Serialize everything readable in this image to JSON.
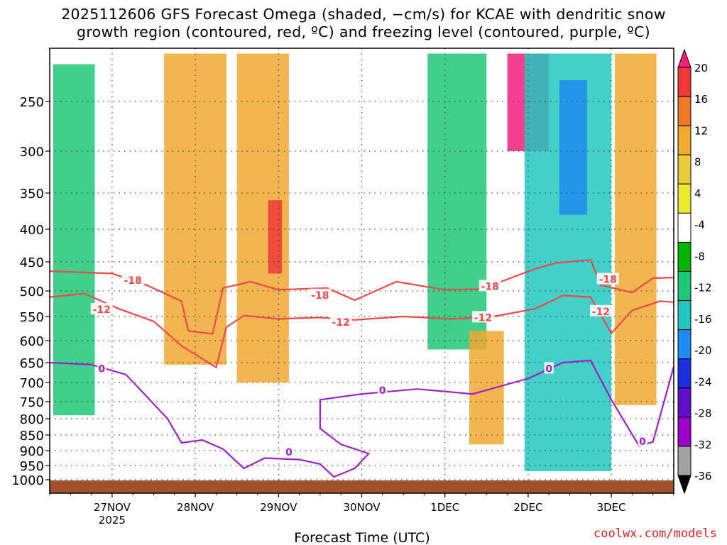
{
  "chart_data": {
    "type": "heatmap",
    "title_line1": "2025112606 GFS Forecast Omega (shaded, −cm/s) for KCAE with dendritic snow",
    "title_line2": "growth region (contoured, red, ºC) and freezing level (contoured, purple, ºC)",
    "xlabel": "Forecast Time (UTC)",
    "ylabel": "",
    "x_ticks": [
      {
        "label": "27NOV",
        "sub": "2025",
        "t": 18
      },
      {
        "label": "28NOV",
        "sub": "",
        "t": 42
      },
      {
        "label": "29NOV",
        "sub": "",
        "t": 66
      },
      {
        "label": "30NOV",
        "sub": "",
        "t": 90
      },
      {
        "label": "1DEC",
        "sub": "",
        "t": 114
      },
      {
        "label": "2DEC",
        "sub": "",
        "t": 138
      },
      {
        "label": "3DEC",
        "sub": "",
        "t": 162
      }
    ],
    "y_ticks": [
      {
        "label": "250",
        "p": 250
      },
      {
        "label": "300",
        "p": 300
      },
      {
        "label": "350",
        "p": 350
      },
      {
        "label": "400",
        "p": 400
      },
      {
        "label": "450",
        "p": 450
      },
      {
        "label": "500",
        "p": 500
      },
      {
        "label": "550",
        "p": 550
      },
      {
        "label": "600",
        "p": 600
      },
      {
        "label": "650",
        "p": 650
      },
      {
        "label": "700",
        "p": 700
      },
      {
        "label": "750",
        "p": 750
      },
      {
        "label": "800",
        "p": 800
      },
      {
        "label": "850",
        "p": 850
      },
      {
        "label": "900",
        "p": 900
      },
      {
        "label": "950",
        "p": 950
      },
      {
        "label": "1000",
        "p": 1000
      }
    ],
    "xlim_hours": [
      0,
      180
    ],
    "ylim_hpa": [
      200,
      1020
    ],
    "colorbar": {
      "labels": [
        "20",
        "16",
        "12",
        "8",
        "4",
        "-4",
        "-8",
        "-12",
        "-16",
        "-20",
        "-24",
        "-28",
        "-32",
        "-36"
      ],
      "colors": [
        "#f0207c",
        "#f03838",
        "#f07a28",
        "#f0a830",
        "#e8cc3a",
        "#eaea30",
        "#ffffff",
        "#00b400",
        "#1ec878",
        "#22c8c0",
        "#1e8cf0",
        "#1c30e0",
        "#6010c8",
        "#9a00c8",
        "#a0a0a0",
        "#000000"
      ]
    },
    "omega_features": [
      {
        "name": "early-upward-green",
        "t0": 1,
        "t1": 13,
        "p_top": 215,
        "p_bot": 790,
        "value": -9
      },
      {
        "name": "28nov-upward-band",
        "t0": 33,
        "t1": 51,
        "p_top": 205,
        "p_bot": 655,
        "value": 8
      },
      {
        "name": "29nov-upward-core",
        "t0": 54,
        "t1": 69,
        "p_top": 205,
        "p_bot": 700,
        "value": 10
      },
      {
        "name": "29nov-max",
        "t0": 63,
        "t1": 67,
        "p_top": 360,
        "p_bot": 470,
        "value": 18
      },
      {
        "name": "1dec-downward-column",
        "t0": 109,
        "t1": 126,
        "p_top": 205,
        "p_bot": 620,
        "value": -10
      },
      {
        "name": "2dec-upward-core",
        "t0": 132,
        "t1": 144,
        "p_top": 205,
        "p_bot": 300,
        "value": 20
      },
      {
        "name": "2dec-downward-wide",
        "t0": 137,
        "t1": 162,
        "p_top": 205,
        "p_bot": 970,
        "value": -14
      },
      {
        "name": "2dec-downward-strong",
        "t0": 147,
        "t1": 155,
        "p_top": 230,
        "p_bot": 380,
        "value": -17
      },
      {
        "name": "3dec-upward",
        "t0": 163,
        "t1": 175,
        "p_top": 205,
        "p_bot": 760,
        "value": 9
      },
      {
        "name": "1dec-lower-upward",
        "t0": 121,
        "t1": 131,
        "p_top": 580,
        "p_bot": 880,
        "value": 10
      }
    ],
    "contours": [
      {
        "label": "-18",
        "color": "#f04848",
        "kind": "dendritic",
        "points": [
          [
            0,
            466
          ],
          [
            18,
            470
          ],
          [
            28,
            490
          ],
          [
            38,
            520
          ],
          [
            40,
            580
          ],
          [
            47,
            586
          ],
          [
            50,
            495
          ],
          [
            58,
            484
          ],
          [
            66,
            498
          ],
          [
            80,
            495
          ],
          [
            88,
            518
          ],
          [
            100,
            484
          ],
          [
            114,
            498
          ],
          [
            124,
            497
          ],
          [
            132,
            480
          ],
          [
            140,
            462
          ],
          [
            146,
            452
          ],
          [
            156,
            447
          ],
          [
            159,
            490
          ],
          [
            168,
            503
          ],
          [
            174,
            478
          ],
          [
            180,
            477
          ]
        ]
      },
      {
        "label": "-12",
        "color": "#f04848",
        "kind": "dendritic",
        "points": [
          [
            0,
            512
          ],
          [
            10,
            505
          ],
          [
            20,
            535
          ],
          [
            30,
            560
          ],
          [
            38,
            612
          ],
          [
            48,
            662
          ],
          [
            51,
            572
          ],
          [
            56,
            548
          ],
          [
            66,
            555
          ],
          [
            78,
            552
          ],
          [
            88,
            557
          ],
          [
            102,
            550
          ],
          [
            116,
            555
          ],
          [
            128,
            550
          ],
          [
            140,
            535
          ],
          [
            148,
            509
          ],
          [
            156,
            512
          ],
          [
            162,
            585
          ],
          [
            168,
            538
          ],
          [
            176,
            520
          ],
          [
            180,
            522
          ]
        ]
      },
      {
        "label": "0",
        "color": "#a020c8",
        "kind": "freezing",
        "points": [
          [
            0,
            650
          ],
          [
            12,
            655
          ],
          [
            22,
            680
          ],
          [
            34,
            800
          ],
          [
            38,
            875
          ],
          [
            44,
            866
          ],
          [
            50,
            895
          ],
          [
            56,
            960
          ],
          [
            62,
            925
          ],
          [
            72,
            930
          ],
          [
            78,
            945
          ],
          [
            82,
            990
          ],
          [
            88,
            960
          ],
          [
            92,
            910
          ],
          [
            84,
            880
          ],
          [
            78,
            830
          ],
          [
            78,
            745
          ],
          [
            90,
            730
          ],
          [
            106,
            717
          ],
          [
            122,
            730
          ],
          [
            138,
            690
          ],
          [
            148,
            650
          ],
          [
            156,
            645
          ],
          [
            162,
            745
          ],
          [
            170,
            885
          ],
          [
            174,
            872
          ],
          [
            180,
            660
          ]
        ]
      }
    ],
    "contour_labels": [
      {
        "text": "-18",
        "t": 24,
        "p": 482
      },
      {
        "text": "-18",
        "t": 78,
        "p": 508
      },
      {
        "text": "-18",
        "t": 127,
        "p": 492
      },
      {
        "text": "-18",
        "t": 161,
        "p": 480
      },
      {
        "text": "-12",
        "t": 15,
        "p": 536
      },
      {
        "text": "-12",
        "t": 84,
        "p": 562
      },
      {
        "text": "-12",
        "t": 125,
        "p": 552
      },
      {
        "text": "-12",
        "t": 159,
        "p": 540
      },
      {
        "text": "0",
        "t": 15,
        "p": 665
      },
      {
        "text": "0",
        "t": 69,
        "p": 905
      },
      {
        "text": "0",
        "t": 96,
        "p": 720
      },
      {
        "text": "0",
        "t": 144,
        "p": 665
      },
      {
        "text": "0",
        "t": 171,
        "p": 870
      }
    ]
  },
  "watermark": "coolwx.com/models",
  "colors": {
    "terrain": "#a0522d",
    "dendritic": "#f04848",
    "freezing": "#a020c8"
  }
}
